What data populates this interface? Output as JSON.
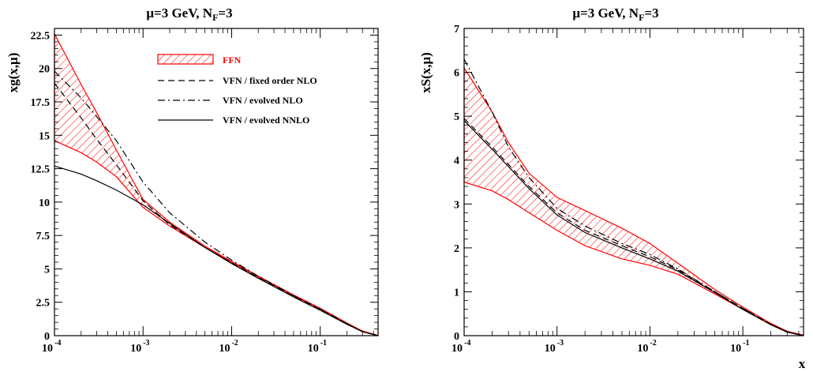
{
  "chart_data": [
    {
      "type": "line",
      "title": "μ=3 GeV, N",
      "title_sub": "F",
      "title_tail": "=3",
      "xlabel": "",
      "ylabel": "xg(x,μ)",
      "xscale": "log",
      "xlim": [
        0.0001,
        0.45
      ],
      "ylim": [
        0,
        23
      ],
      "yticks": [
        0,
        2.5,
        5,
        7.5,
        10,
        12.5,
        15,
        17.5,
        20,
        22.5
      ],
      "ytick_labels": [
        "0",
        "2.5",
        "5",
        "7.5",
        "10",
        "12.5",
        "15",
        "17.5",
        "20",
        "22.5"
      ],
      "xtick_exponents": [
        "-4",
        "-3",
        "-2",
        "-1"
      ],
      "legend_position": "top-center",
      "band": {
        "name": "FFN",
        "color": "#ff0000",
        "x": [
          0.0001,
          0.0002,
          0.0003,
          0.0005,
          0.001,
          0.002,
          0.005,
          0.01,
          0.02,
          0.05,
          0.1,
          0.2,
          0.3,
          0.45
        ],
        "lower": [
          14.6,
          13.7,
          13.0,
          11.9,
          9.6,
          8.2,
          6.6,
          5.5,
          4.4,
          3.0,
          2.0,
          0.9,
          0.3,
          0.0
        ],
        "upper": [
          22.6,
          18.8,
          16.7,
          13.9,
          10.2,
          8.5,
          6.7,
          5.55,
          4.45,
          3.05,
          2.05,
          0.95,
          0.35,
          0.02
        ]
      },
      "series": [
        {
          "name": "VFN / fixed order NLO",
          "style": "dashed",
          "x": [
            0.0001,
            0.0002,
            0.0003,
            0.0005,
            0.001,
            0.002,
            0.005,
            0.01,
            0.02,
            0.05,
            0.1,
            0.2,
            0.3,
            0.45
          ],
          "y": [
            18.9,
            16.3,
            14.7,
            12.8,
            10.1,
            8.3,
            6.6,
            5.45,
            4.35,
            2.95,
            1.95,
            0.9,
            0.3,
            0.0
          ]
        },
        {
          "name": "VFN / evolved NLO",
          "style": "dashdot",
          "x": [
            0.0001,
            0.0002,
            0.0003,
            0.0005,
            0.001,
            0.002,
            0.005,
            0.01,
            0.02,
            0.05,
            0.1,
            0.2,
            0.3,
            0.45
          ],
          "y": [
            19.8,
            17.8,
            16.4,
            14.6,
            11.5,
            9.2,
            7.0,
            5.65,
            4.45,
            3.0,
            2.0,
            0.9,
            0.3,
            0.0
          ]
        },
        {
          "name": "VFN / evolved NNLO",
          "style": "solid",
          "x": [
            0.0001,
            0.0002,
            0.0003,
            0.0005,
            0.001,
            0.002,
            0.005,
            0.01,
            0.02,
            0.05,
            0.1,
            0.2,
            0.3,
            0.45
          ],
          "y": [
            12.7,
            12.1,
            11.6,
            10.9,
            9.8,
            8.4,
            6.6,
            5.4,
            4.3,
            2.9,
            1.9,
            0.85,
            0.3,
            0.0
          ]
        }
      ]
    },
    {
      "type": "line",
      "title": "μ=3 GeV, N",
      "title_sub": "F",
      "title_tail": "=3",
      "xlabel": "x",
      "ylabel": "xS(x,μ)",
      "xscale": "log",
      "xlim": [
        0.0001,
        0.45
      ],
      "ylim": [
        0,
        7
      ],
      "yticks": [
        0,
        1,
        2,
        3,
        4,
        5,
        6,
        7
      ],
      "ytick_labels": [
        "0",
        "1",
        "2",
        "3",
        "4",
        "5",
        "6",
        "7"
      ],
      "xtick_exponents": [
        "-4",
        "-3",
        "-2",
        "-1"
      ],
      "band": {
        "name": "FFN",
        "color": "#ff0000",
        "x": [
          0.0001,
          0.0002,
          0.0003,
          0.0005,
          0.001,
          0.002,
          0.005,
          0.01,
          0.02,
          0.05,
          0.1,
          0.2,
          0.3,
          0.45
        ],
        "lower": [
          3.5,
          3.3,
          3.1,
          2.8,
          2.4,
          2.05,
          1.75,
          1.6,
          1.4,
          0.95,
          0.6,
          0.25,
          0.08,
          0.0
        ],
        "upper": [
          6.1,
          5.1,
          4.4,
          3.7,
          3.15,
          2.85,
          2.45,
          2.1,
          1.65,
          1.05,
          0.65,
          0.28,
          0.1,
          0.01
        ]
      },
      "series": [
        {
          "name": "VFN / fixed order NLO",
          "style": "dashed",
          "x": [
            0.0001,
            0.0002,
            0.0003,
            0.0005,
            0.001,
            0.002,
            0.005,
            0.01,
            0.02,
            0.05,
            0.1,
            0.2,
            0.3,
            0.45
          ],
          "y": [
            4.95,
            4.3,
            3.9,
            3.4,
            2.8,
            2.4,
            2.05,
            1.8,
            1.5,
            1.0,
            0.62,
            0.26,
            0.09,
            0.0
          ]
        },
        {
          "name": "VFN / evolved NLO",
          "style": "dashdot",
          "x": [
            0.0001,
            0.0002,
            0.0003,
            0.0005,
            0.001,
            0.002,
            0.005,
            0.01,
            0.02,
            0.05,
            0.1,
            0.2,
            0.3,
            0.45
          ],
          "y": [
            6.3,
            5.1,
            4.3,
            3.6,
            2.9,
            2.5,
            2.1,
            1.85,
            1.52,
            1.0,
            0.62,
            0.26,
            0.09,
            0.0
          ]
        },
        {
          "name": "VFN / evolved NNLO",
          "style": "solid",
          "x": [
            0.0001,
            0.0002,
            0.0003,
            0.0005,
            0.001,
            0.002,
            0.005,
            0.01,
            0.02,
            0.05,
            0.1,
            0.2,
            0.3,
            0.45
          ],
          "y": [
            4.9,
            4.25,
            3.85,
            3.35,
            2.75,
            2.35,
            2.0,
            1.75,
            1.47,
            0.98,
            0.6,
            0.25,
            0.08,
            0.0
          ]
        }
      ]
    }
  ]
}
